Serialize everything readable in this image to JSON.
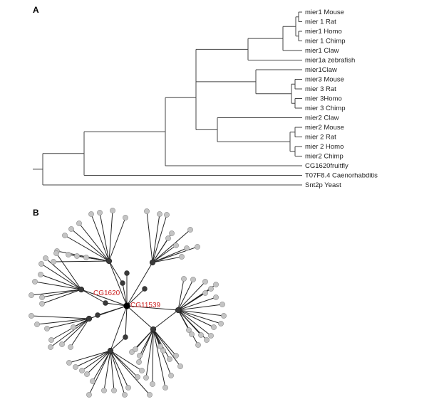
{
  "panels": {
    "a": {
      "label": "A"
    },
    "b": {
      "label": "B"
    }
  },
  "tree": {
    "leaves": [
      {
        "id": "m1mouse",
        "label": "mier1 Mouse"
      },
      {
        "id": "m1rat",
        "label": "mier 1 Rat"
      },
      {
        "id": "m1homo",
        "label": "mier1 Homo"
      },
      {
        "id": "m1chimp",
        "label": "mier 1 Chimp"
      },
      {
        "id": "m1claw",
        "label": "mier1 Claw"
      },
      {
        "id": "m1azebra",
        "label": "mier1a zebrafish"
      },
      {
        "id": "m1claw2",
        "label": "mier1Claw"
      },
      {
        "id": "m3mouse",
        "label": "mier3 Mouse"
      },
      {
        "id": "m3rat",
        "label": "mier 3 Rat"
      },
      {
        "id": "m3homo",
        "label": "mier 3Homo"
      },
      {
        "id": "m3chimp",
        "label": "mier 3 Chimp"
      },
      {
        "id": "m2claw",
        "label": "mier2 Claw"
      },
      {
        "id": "m2mouse",
        "label": "mier2 Mouse"
      },
      {
        "id": "m2rat",
        "label": "mier 2 Rat"
      },
      {
        "id": "m2homo",
        "label": "mier 2 Homo"
      },
      {
        "id": "m2chimp",
        "label": "mier2 Chimp"
      },
      {
        "id": "cg1620",
        "label": "CG1620fruitfly"
      },
      {
        "id": "t07f8",
        "label": "T07F8.4 Caenorhabditis"
      },
      {
        "id": "snt2p",
        "label": "Snt2p Yeast"
      }
    ]
  },
  "network": {
    "labels": {
      "cg1620": "CG1620",
      "cg11539": "CG11539"
    }
  }
}
